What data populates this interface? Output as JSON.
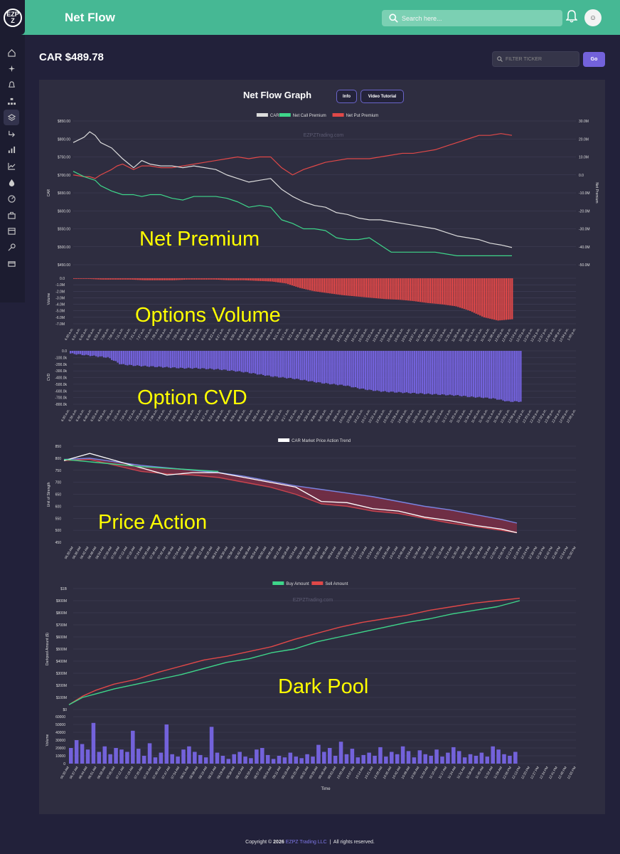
{
  "app": {
    "logo_text": "EZPZ",
    "page_title": "Net Flow"
  },
  "search": {
    "placeholder": "Search here..."
  },
  "header_icons": [
    "bell-icon",
    "avatar"
  ],
  "sidebar": {
    "icons": [
      "home-icon",
      "sparkle-icon",
      "bell-icon",
      "sitemap-icon",
      "layers-icon",
      "return-arrow-icon",
      "bar-chart-icon",
      "line-chart-icon",
      "drop-icon",
      "gauge-icon",
      "briefcase-icon",
      "calendar-icon",
      "key-icon",
      "card-icon"
    ],
    "active_index": 4
  },
  "ticker_header": {
    "title": "CAR $489.78"
  },
  "filter": {
    "placeholder": "FILTER TICKER",
    "go_label": "Go"
  },
  "graph_header": {
    "title": "Net Flow Graph",
    "info_label": "Info",
    "tutorial_label": "Video Tutorial"
  },
  "overlays": {
    "net_premium": "Net Premium",
    "options_volume": "Options Volume",
    "option_cvd": "Option CVD",
    "price_action": "Price Action",
    "dark_pool": "Dark Pool"
  },
  "watermark": "EZPZTrading.com",
  "footer": {
    "prefix": "Copyright ©",
    "year": "2026",
    "company": "EZPZ Trading LLC",
    "separator": "|",
    "rights": "All rights reserved."
  },
  "colors": {
    "header": "#46b894",
    "panel": "#2e2d40",
    "call": "#3ed68a",
    "put": "#e04848",
    "price": "#dcdcdc",
    "volume_bar": "#7362db",
    "accent": "#7362db",
    "overlay_text": "#ffff00"
  },
  "chart_data": [
    {
      "type": "line",
      "legend": [
        "CAR",
        "Net Call Premium",
        "Net Put Premium"
      ],
      "ylabel": "CAR",
      "y2label": "Net Premium",
      "ylim": [
        450,
        850
      ],
      "y_ticks": [
        "$850.00",
        "$800.00",
        "$750.00",
        "$700.00",
        "$650.00",
        "$600.00",
        "$550.00",
        "$500.00",
        "$450.00"
      ],
      "y2lim": [
        -50,
        30
      ],
      "y2_ticks": [
        "30.0M",
        "20.0M",
        "10.0M",
        "0.0",
        "-10.0M",
        "-20.0M",
        "-30.0M",
        "-40.0M",
        "-50.0M"
      ],
      "x": [
        0,
        4,
        6,
        8,
        10,
        14,
        16,
        18,
        22,
        25,
        28,
        32,
        36,
        40,
        44,
        48,
        52,
        56,
        60,
        64,
        68,
        72,
        76,
        80,
        84,
        88,
        92,
        96,
        100,
        104,
        108,
        112,
        116,
        120,
        124,
        128,
        132,
        136,
        140,
        144,
        148,
        152,
        156,
        160
      ],
      "series": [
        {
          "name": "CAR",
          "values": [
            790,
            805,
            820,
            810,
            790,
            775,
            760,
            745,
            720,
            740,
            730,
            725,
            725,
            720,
            725,
            720,
            715,
            700,
            690,
            680,
            685,
            690,
            660,
            640,
            625,
            615,
            610,
            595,
            590,
            580,
            575,
            575,
            570,
            565,
            560,
            555,
            550,
            540,
            530,
            525,
            520,
            510,
            505,
            498
          ]
        },
        {
          "name": "Net Call Premium",
          "values": [
            2,
            -1,
            -2,
            -3,
            -6,
            -9,
            -10,
            -11,
            -11,
            -12,
            -11,
            -11,
            -13,
            -14,
            -12,
            -12,
            -12,
            -13,
            -15,
            -18,
            -17,
            -18,
            -25,
            -27,
            -30,
            -30,
            -31,
            -35,
            -36,
            -36,
            -35,
            -39,
            -43,
            -43,
            -43,
            -43,
            -43,
            -44,
            -45,
            -45,
            -45,
            -45,
            -45,
            -45
          ]
        },
        {
          "name": "Net Put Premium",
          "values": [
            0,
            -1,
            -1,
            -2,
            0,
            3,
            5,
            6,
            3,
            5,
            5,
            4,
            4,
            5,
            6,
            7,
            8,
            9,
            10,
            9,
            10,
            10,
            4,
            0,
            3,
            5,
            7,
            8,
            9,
            9,
            9,
            10,
            11,
            12,
            12,
            13,
            14,
            16,
            18,
            20,
            22,
            22,
            23,
            22
          ]
        }
      ]
    },
    {
      "type": "bar",
      "name": "Options Volume",
      "ylabel": "Volume",
      "y_ticks": [
        "0.0",
        "-1.0M",
        "-2.0M",
        "-3.0M",
        "-4.0M",
        "-5.0M",
        "-6.0M",
        "-7.0M"
      ],
      "ylim": [
        -7,
        0
      ],
      "values": [
        -0.1,
        -0.1,
        -0.2,
        -0.2,
        -0.2,
        -0.3,
        -0.3,
        -0.3,
        -0.2,
        -0.2,
        -0.2,
        -0.3,
        -0.3,
        -0.4,
        -0.5,
        -0.8,
        -1.5,
        -2,
        -2.3,
        -2.6,
        -2.8,
        -3,
        -3.2,
        -3.3,
        -3.5,
        -3.8,
        -4,
        -4.3,
        -5,
        -6,
        -6.5,
        -6.3
      ],
      "x_ticks": [
        "6:30 a.m.",
        "6:37 a.m.",
        "6:43 a.m.",
        "6:48 a.m.",
        "6:53 a.m.",
        "7:00 a.m.",
        "7:06 a.m.",
        "7:11 a.m.",
        "7:16 a.m.",
        "7:21 a.m.",
        "7:27 a.m.",
        "7:33 a.m.",
        "7:39 a.m.",
        "7:44 a.m.",
        "7:50 a.m.",
        "7:55 a.m.",
        "8:01 a.m.",
        "8:06 a.m.",
        "8:11 a.m.",
        "8:16 a.m.",
        "8:22 a.m.",
        "8:27 a.m.",
        "8:33 a.m.",
        "8:38 a.m.",
        "8:44 a.m.",
        "8:49 a.m.",
        "8:55 a.m.",
        "9:00 a.m.",
        "9:06 a.m.",
        "9:11 a.m.",
        "9:17 a.m.",
        "9:22 a.m.",
        "9:28 a.m.",
        "9:33 a.m.",
        "9:39 a.m.",
        "9:44 a.m.",
        "9:50 a.m.",
        "9:55 a.m.",
        "10:01 a.m.",
        "10:06 a.m.",
        "10:12 a.m.",
        "10:18 a.m.",
        "10:23 a.m.",
        "10:29 a.m.",
        "10:34 a.m.",
        "10:40 a.m.",
        "10:45 a.m.",
        "10:51 a.m.",
        "10:57 a.m.",
        "11:02 a.m.",
        "11:08 a.m.",
        "11:13 a.m.",
        "11:19 a.m.",
        "11:25 a.m.",
        "11:30 a.m.",
        "11:36 a.m.",
        "11:41 a.m.",
        "11:47 a.m.",
        "11:52 a.m.",
        "11:58 a.m.",
        "12:03 p.m.",
        "12:09 p.m.",
        "12:14 p.m.",
        "12:20 p.m.",
        "12:26 p.m.",
        "12:31 p.m.",
        "12:37 p.m.",
        "12:43 p.m.",
        "12:48 p.m.",
        "12:54 p.m.",
        "1:00 p.m."
      ]
    },
    {
      "type": "bar",
      "name": "Option CVD",
      "ylabel": "CVD",
      "y_ticks": [
        "0.0",
        "-100.0k",
        "-200.0k",
        "-300.0k",
        "-400.0k",
        "-500.0k",
        "-600.0k",
        "-700.0k",
        "-800.0k"
      ],
      "ylim": [
        -800,
        0
      ],
      "values": [
        -40,
        -60,
        -80,
        -100,
        -200,
        -220,
        -230,
        -240,
        -250,
        -260,
        -260,
        -270,
        -280,
        -300,
        -320,
        -350,
        -380,
        -400,
        -420,
        -450,
        -480,
        -500,
        -520,
        -560,
        -590,
        -610,
        -620,
        -630,
        -640,
        -650,
        -660,
        -670,
        -690,
        -700,
        -720,
        -760,
        -760
      ],
      "x_ticks": [
        "6:30 a.m.",
        "6:36 a.m.",
        "6:42 a.m.",
        "6:48 a.m.",
        "6:53 a.m.",
        "6:59 a.m.",
        "7:05 a.m.",
        "7:10 a.m.",
        "7:16 a.m.",
        "7:22 a.m.",
        "7:28 a.m.",
        "7:33 a.m.",
        "7:39 a.m.",
        "7:44 a.m.",
        "7:50 a.m.",
        "7:55 a.m.",
        "8:01 a.m.",
        "8:06 a.m.",
        "8:11 a.m.",
        "8:17 a.m.",
        "8:22 a.m.",
        "8:28 a.m.",
        "8:34 a.m.",
        "8:39 a.m.",
        "8:45 a.m.",
        "8:50 a.m.",
        "8:56 a.m.",
        "9:01 a.m.",
        "9:06 a.m.",
        "9:12 a.m.",
        "9:17 a.m.",
        "9:22 a.m.",
        "9:28 a.m.",
        "9:33 a.m.",
        "9:39 a.m.",
        "9:45 a.m.",
        "9:50 a.m.",
        "9:56 a.m.",
        "10:01 a.m.",
        "10:06 a.m.",
        "10:12 a.m.",
        "10:17 a.m.",
        "10:22 a.m.",
        "10:28 a.m.",
        "10:33 a.m.",
        "10:39 a.m.",
        "10:44 a.m.",
        "10:50 a.m.",
        "10:55 a.m.",
        "11:01 a.m.",
        "11:06 a.m.",
        "11:12 a.m.",
        "11:17 a.m.",
        "11:23 a.m.",
        "11:28 a.m.",
        "11:34 a.m.",
        "11:40 a.m.",
        "11:45 a.m.",
        "11:51 a.m.",
        "11:56 a.m.",
        "12:02 p.m.",
        "12:08 p.m.",
        "12:14 p.m.",
        "12:20 p.m.",
        "12:26 p.m.",
        "12:32 p.m.",
        "12:38 p.m.",
        "12:44 p.m.",
        "12:50 p.m.",
        "12:56 p.m."
      ]
    },
    {
      "type": "line",
      "name": "Price Action",
      "legend": [
        "CAR Market Price Action Trend"
      ],
      "ylabel": "Unit of Strength",
      "ylim": [
        450,
        850
      ],
      "y_ticks": [
        "850",
        "800",
        "750",
        "700",
        "650",
        "600",
        "550",
        "500",
        "450"
      ],
      "x": [
        0,
        5,
        10,
        15,
        20,
        25,
        30,
        35,
        40,
        45,
        50,
        55,
        60,
        65,
        70,
        75,
        80,
        85,
        88
      ],
      "series": [
        {
          "name": "price",
          "values": [
            790,
            820,
            790,
            760,
            730,
            740,
            740,
            720,
            700,
            680,
            620,
            615,
            590,
            580,
            555,
            540,
            520,
            505,
            490
          ]
        },
        {
          "name": "upper",
          "values": [
            795,
            800,
            785,
            770,
            760,
            750,
            740,
            725,
            705,
            685,
            670,
            655,
            640,
            620,
            600,
            585,
            565,
            545,
            530
          ]
        },
        {
          "name": "lower",
          "values": [
            790,
            795,
            770,
            745,
            735,
            730,
            720,
            700,
            680,
            650,
            610,
            600,
            580,
            570,
            550,
            530,
            515,
            500,
            490
          ]
        }
      ],
      "x_ticks": [
        "06:30 AM",
        "06:36 AM",
        "06:42 AM",
        "06:48 AM",
        "06:54 AM",
        "07:00 AM",
        "07:06 AM",
        "07:12 AM",
        "07:18 AM",
        "07:24 AM",
        "07:30 AM",
        "07:36 AM",
        "07:42 AM",
        "07:48 AM",
        "07:54 AM",
        "08:00 AM",
        "08:06 AM",
        "08:12 AM",
        "08:18 AM",
        "08:24 AM",
        "08:30 AM",
        "08:36 AM",
        "08:42 AM",
        "08:48 AM",
        "08:54 AM",
        "09:00 AM",
        "09:06 AM",
        "09:12 AM",
        "09:18 AM",
        "09:24 AM",
        "09:30 AM",
        "09:36 AM",
        "09:42 AM",
        "09:48 AM",
        "09:54 AM",
        "10:00 AM",
        "10:06 AM",
        "10:12 AM",
        "10:18 AM",
        "10:24 AM",
        "10:30 AM",
        "10:36 AM",
        "10:42 AM",
        "10:48 AM",
        "10:54 AM",
        "11:00 AM",
        "11:06 AM",
        "11:12 AM",
        "11:18 AM",
        "11:24 AM",
        "11:30 AM",
        "11:36 AM",
        "11:42 AM",
        "11:48 AM",
        "11:54 AM",
        "12:00 PM",
        "12:06 PM",
        "12:12 PM",
        "12:18 PM",
        "12:24 PM",
        "12:30 PM",
        "12:36 PM",
        "12:42 PM",
        "12:48 PM",
        "12:54 PM",
        "01:00 PM"
      ]
    },
    {
      "type": "line",
      "name": "Dark Pool",
      "legend": [
        "Buy Amount",
        "Sell Amount"
      ],
      "ylabel": "Darkpool Amount ($)",
      "ylim": [
        0,
        1000
      ],
      "y_ticks": [
        "$1B",
        "$900M",
        "$800M",
        "$700M",
        "$600M",
        "$500M",
        "$400M",
        "$300M",
        "$200M",
        "$100M",
        "$0"
      ],
      "x": [
        0,
        3,
        6,
        10,
        15,
        20,
        25,
        30,
        35,
        40,
        45,
        50,
        55,
        60,
        65,
        70,
        75,
        80,
        85,
        90,
        95,
        100
      ],
      "series": [
        {
          "name": "Buy Amount",
          "values": [
            40,
            100,
            130,
            170,
            210,
            250,
            290,
            340,
            390,
            420,
            470,
            500,
            560,
            600,
            640,
            680,
            720,
            750,
            790,
            820,
            850,
            900
          ]
        },
        {
          "name": "Sell Amount",
          "values": [
            40,
            110,
            160,
            210,
            250,
            310,
            360,
            410,
            440,
            480,
            520,
            580,
            630,
            680,
            720,
            750,
            780,
            820,
            850,
            880,
            900,
            920
          ]
        }
      ]
    },
    {
      "type": "bar",
      "name": "Dark Pool Volume",
      "ylabel": "Volume",
      "xlabel": "Time",
      "ylim": [
        0,
        60000
      ],
      "y_ticks": [
        "60000",
        "50000",
        "40000",
        "30000",
        "20000",
        "10000",
        "0"
      ],
      "values": [
        20000,
        30000,
        25000,
        18000,
        52000,
        15000,
        22000,
        12000,
        20000,
        18000,
        15000,
        42000,
        19000,
        10000,
        26000,
        8000,
        14000,
        50000,
        12000,
        9000,
        18000,
        22000,
        15000,
        11000,
        8000,
        47000,
        14000,
        10000,
        6000,
        12000,
        15000,
        9000,
        7000,
        18000,
        20000,
        11000,
        6000,
        10000,
        8000,
        14000,
        9000,
        7000,
        12000,
        9000,
        24000,
        15000,
        20000,
        10000,
        28000,
        12000,
        19000,
        8000,
        11000,
        14000,
        10000,
        21000,
        9000,
        15000,
        12000,
        22000,
        16000,
        8000,
        17000,
        12000,
        10000,
        18000,
        9000,
        14000,
        21000,
        16000,
        8000,
        12000,
        10000,
        14000,
        9000,
        22000,
        18000,
        12000,
        10000,
        15000
      ],
      "x_ticks": [
        "06:30 AM",
        "06:37 AM",
        "06:44 AM",
        "06:51 AM",
        "06:58 AM",
        "07:05 AM",
        "07:12 AM",
        "07:19 AM",
        "07:26 AM",
        "07:33 AM",
        "07:40 AM",
        "07:47 AM",
        "07:54 AM",
        "08:01 AM",
        "08:08 AM",
        "08:15 AM",
        "08:22 AM",
        "08:29 AM",
        "08:36 AM",
        "08:43 AM",
        "08:50 AM",
        "08:57 AM",
        "09:04 AM",
        "09:11 AM",
        "09:18 AM",
        "09:25 AM",
        "09:32 AM",
        "09:39 AM",
        "09:46 AM",
        "09:53 AM",
        "10:00 AM",
        "10:07 AM",
        "10:14 AM",
        "10:21 AM",
        "10:28 AM",
        "10:35 AM",
        "10:42 AM",
        "10:49 AM",
        "10:56 AM",
        "11:03 AM",
        "11:10 AM",
        "11:17 AM",
        "11:24 AM",
        "11:31 AM",
        "11:38 AM",
        "11:45 AM",
        "11:52 AM",
        "11:59 AM",
        "12:06 PM",
        "12:13 PM",
        "12:20 PM",
        "12:27 PM",
        "12:34 PM",
        "12:41 PM",
        "12:48 PM",
        "12:55 PM"
      ]
    }
  ]
}
